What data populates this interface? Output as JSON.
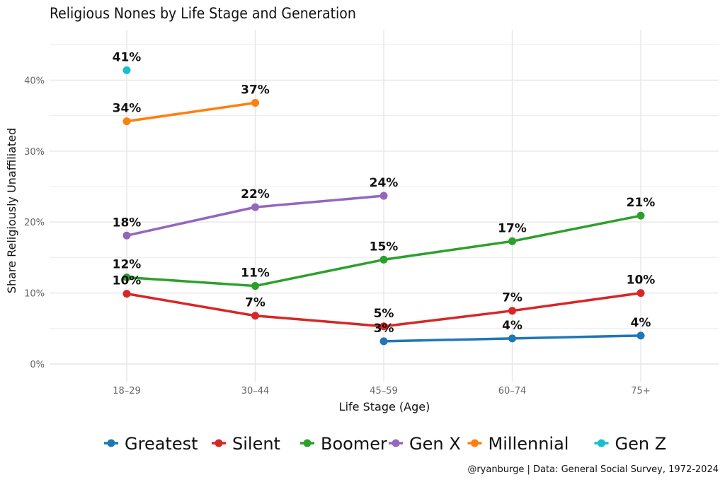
{
  "chart_data": {
    "type": "line",
    "title": "Religious Nones by Life Stage and Generation",
    "xlabel": "Life Stage (Age)",
    "ylabel": "Share Religiously Unaffiliated",
    "categories": [
      "18–29",
      "30–44",
      "45–59",
      "60–74",
      "75+"
    ],
    "ylim": [
      0,
      46
    ],
    "yticks": [
      0,
      10,
      20,
      30,
      40
    ],
    "ytick_labels": [
      "0%",
      "10%",
      "20%",
      "30%",
      "40%"
    ],
    "grid": true,
    "legend_position": "bottom",
    "caption": "@ryanburge | Data: General Social Survey, 1972-2024",
    "series": [
      {
        "name": "Greatest",
        "color": "#1f77b4",
        "values": [
          null,
          null,
          3.2,
          3.6,
          4.0
        ],
        "labels": [
          null,
          null,
          "3%",
          "4%",
          "4%"
        ]
      },
      {
        "name": "Silent",
        "color": "#d62728",
        "values": [
          9.9,
          6.8,
          5.3,
          7.5,
          10.0
        ],
        "labels": [
          "10%",
          "7%",
          "5%",
          "7%",
          "10%"
        ]
      },
      {
        "name": "Boomer",
        "color": "#2ca02c",
        "values": [
          12.2,
          11.0,
          14.7,
          17.3,
          20.9
        ],
        "labels": [
          "12%",
          "11%",
          "15%",
          "17%",
          "21%"
        ]
      },
      {
        "name": "Gen X",
        "color": "#9467bd",
        "values": [
          18.1,
          22.1,
          23.7,
          null,
          null
        ],
        "labels": [
          "18%",
          "22%",
          "24%",
          null,
          null
        ]
      },
      {
        "name": "Millennial",
        "color": "#ff7f0e",
        "values": [
          34.2,
          36.8,
          null,
          null,
          null
        ],
        "labels": [
          "34%",
          "37%",
          null,
          null,
          null
        ]
      },
      {
        "name": "Gen Z",
        "color": "#17becf",
        "values": [
          41.4,
          null,
          null,
          null,
          null
        ],
        "labels": [
          "41%",
          null,
          null,
          null,
          null
        ]
      }
    ]
  }
}
